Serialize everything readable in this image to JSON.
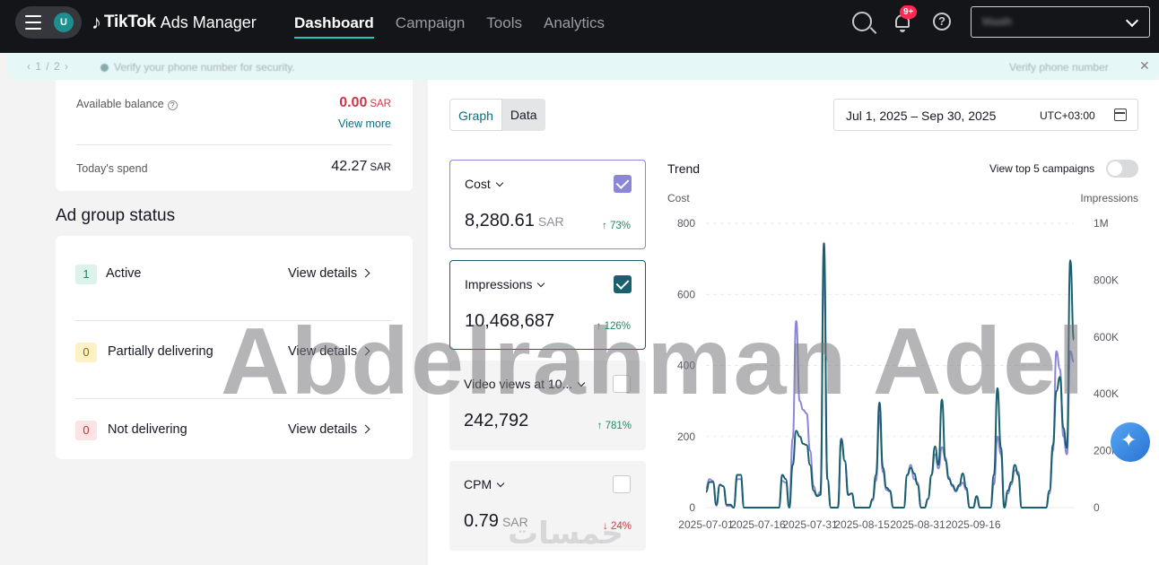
{
  "header": {
    "avatar_initial": "U",
    "logo_brand": "TikTok",
    "logo_product": "Ads Manager",
    "nav": [
      {
        "label": "Dashboard",
        "active": true
      },
      {
        "label": "Campaign",
        "active": false
      },
      {
        "label": "Tools",
        "active": false
      },
      {
        "label": "Analytics",
        "active": false
      }
    ],
    "notification_badge": "9+",
    "account_name": "Maath"
  },
  "banner": {
    "pager": "1 / 2",
    "message": "Verify your phone number for security.",
    "action": "Verify phone number",
    "close_glyph": "✕"
  },
  "balance": {
    "available_label": "Available balance",
    "available_value": "0.00",
    "currency": "SAR",
    "view_more": "View more",
    "spend_label": "Today's spend",
    "spend_value": "42.27"
  },
  "ad_group_status": {
    "title": "Ad group status",
    "rows": [
      {
        "count": "1",
        "label": "Active",
        "details": "View details",
        "tone": "green"
      },
      {
        "count": "0",
        "label": "Partially delivering",
        "details": "View details",
        "tone": "yellow"
      },
      {
        "count": "0",
        "label": "Not delivering",
        "details": "View details",
        "tone": "red"
      }
    ]
  },
  "view_toggle": {
    "graph": "Graph",
    "data": "Data"
  },
  "date_range": {
    "range": "Jul 1, 2025 – Sep 30, 2025",
    "timezone": "UTC+03:00"
  },
  "metrics": [
    {
      "name": "Cost",
      "value": "8,280.61",
      "unit": "SAR",
      "change": "↑ 73%",
      "direction": "up",
      "selected": true,
      "color": "#8b86d8"
    },
    {
      "name": "Impressions",
      "value": "10,468,687",
      "unit": "",
      "change": "↑ 126%",
      "direction": "up",
      "selected": true,
      "color": "#1a5f6e"
    },
    {
      "name": "Video views at 10...",
      "value": "242,792",
      "unit": "",
      "change": "↑ 781%",
      "direction": "up",
      "selected": false,
      "color": ""
    },
    {
      "name": "CPM",
      "value": "0.79",
      "unit": "SAR",
      "change": "↓ 24%",
      "direction": "down",
      "selected": false,
      "color": ""
    }
  ],
  "trend": {
    "title": "Trend",
    "top5_label": "View top 5 campaigns",
    "top5_enabled": false
  },
  "watermarks": {
    "big": "Abdelrahman Adel",
    "small": "خمسات"
  },
  "chart_data": {
    "type": "line",
    "title": "Trend",
    "xlabel": "",
    "ylabel": "Cost",
    "y2label": "Impressions",
    "ylim": [
      0,
      800
    ],
    "y2lim": [
      0,
      1000000
    ],
    "yticks": [
      "0",
      "200",
      "400",
      "600",
      "800"
    ],
    "y2ticks": [
      "0",
      "200K",
      "400K",
      "600K",
      "800K",
      "1M"
    ],
    "xticks": [
      "2025-07-01",
      "2025-07-16",
      "2025-07-31",
      "2025-08-15",
      "2025-08-31",
      "2025-09-16"
    ],
    "grid": true,
    "series": [
      {
        "name": "Cost",
        "axis": "left",
        "color": "#8b86d8",
        "values": [
          55,
          80,
          75,
          5,
          65,
          60,
          5,
          5,
          0,
          80,
          80,
          0,
          0,
          0,
          0,
          0,
          0,
          0,
          0,
          0,
          0,
          0,
          75,
          70,
          0,
          195,
          525,
          300,
          275,
          265,
          160,
          60,
          35,
          45,
          700,
          80,
          0,
          0,
          0,
          195,
          130,
          35,
          40,
          0,
          0,
          0,
          0,
          0,
          20,
          75,
          260,
          100,
          50,
          45,
          0,
          0,
          0,
          0,
          90,
          120,
          80,
          70,
          0,
          0,
          25,
          90,
          150,
          110,
          170,
          140,
          85,
          60,
          45,
          60,
          70,
          50,
          0,
          0,
          30,
          0,
          0,
          0,
          0,
          65,
          200,
          150,
          0,
          40,
          65,
          105,
          100,
          0,
          0,
          0,
          0,
          0,
          0,
          0,
          0,
          40,
          160,
          440,
          390,
          200,
          150,
          440,
          410
        ]
      },
      {
        "name": "Impressions",
        "axis": "right",
        "color": "#1a5f6e",
        "values": [
          55000,
          90000,
          90000,
          10000,
          80000,
          75000,
          10000,
          10000,
          0,
          115000,
          115000,
          0,
          0,
          0,
          0,
          0,
          0,
          0,
          0,
          0,
          0,
          0,
          115000,
          100000,
          0,
          150000,
          270000,
          250000,
          225000,
          220000,
          150000,
          60000,
          40000,
          45000,
          930000,
          100000,
          0,
          0,
          0,
          240000,
          165000,
          45000,
          50000,
          0,
          0,
          0,
          0,
          0,
          30000,
          115000,
          370000,
          140000,
          70000,
          60000,
          0,
          0,
          0,
          0,
          115000,
          140000,
          120000,
          80000,
          0,
          0,
          30000,
          115000,
          215000,
          150000,
          380000,
          165000,
          100000,
          80000,
          60000,
          80000,
          120000,
          70000,
          0,
          0,
          40000,
          0,
          0,
          0,
          0,
          115000,
          420000,
          210000,
          0,
          60000,
          90000,
          150000,
          115000,
          0,
          0,
          0,
          0,
          0,
          0,
          0,
          0,
          60000,
          220000,
          410000,
          460000,
          280000,
          210000,
          870000,
          590000
        ]
      }
    ]
  }
}
